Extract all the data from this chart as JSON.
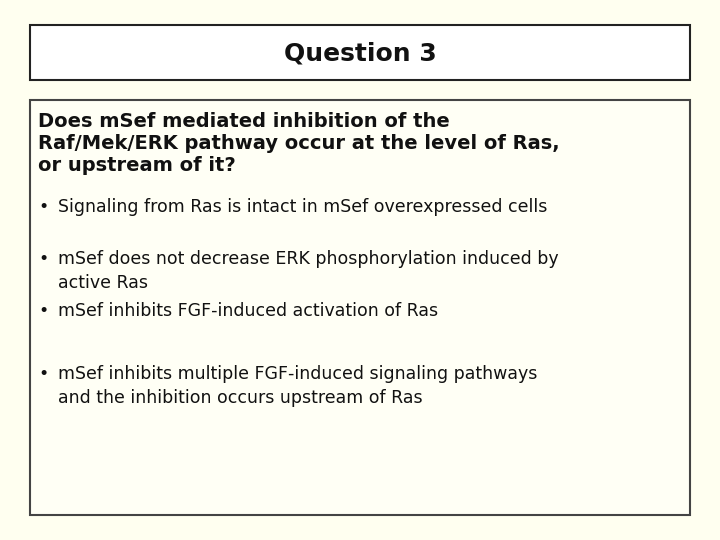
{
  "background_color": "#fffff0",
  "title": "Question 3",
  "title_box_color": "#ffffff",
  "title_fontsize": 18,
  "title_fontweight": "bold",
  "content_box_color": "#fffff5",
  "content_box_border": "#444444",
  "question_line1": "Does mSef mediated inhibition of the",
  "question_line2": "Raf/Mek/ERK pathway occur at the level of Ras,",
  "question_line3": "or upstream of it?",
  "question_fontsize": 14,
  "bullet_points": [
    "Signaling from Ras is intact in mSef overexpressed cells",
    "mSef does not decrease ERK phosphorylation induced by\nactive Ras",
    "mSef inhibits FGF-induced activation of Ras",
    "mSef inhibits multiple FGF-induced signaling pathways\nand the inhibition occurs upstream of Ras"
  ],
  "bullet_fontsize": 12.5,
  "text_color": "#111111",
  "font_family": "DejaVu Sans"
}
